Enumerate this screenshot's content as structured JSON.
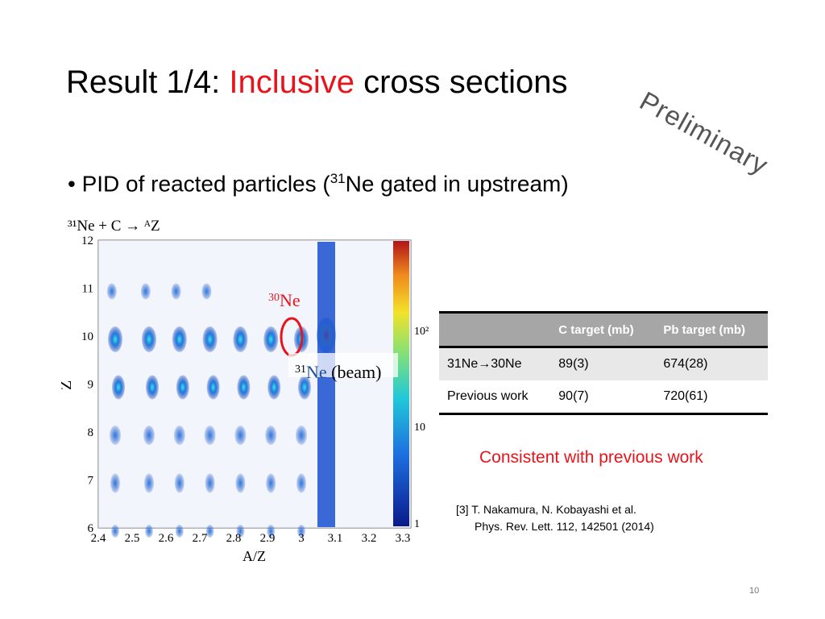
{
  "slide": {
    "title_prefix": "Result 1/4: ",
    "title_highlight": "Inclusive",
    "title_suffix": " cross sections",
    "stamp": "Preliminary",
    "bullet_symbol": "•",
    "bullet_text_a": "PID of reacted particles (",
    "bullet_sup": "31",
    "bullet_text_b": "Ne gated in upstream)",
    "page_number": "10"
  },
  "plot": {
    "reaction_title": "³¹Ne + C → ᴬZ",
    "xlabel": "A/Z",
    "ylabel": "Z",
    "x_ticks": [
      "2.4",
      "2.5",
      "2.6",
      "2.7",
      "2.8",
      "2.9",
      "3",
      "3.1",
      "3.2",
      "3.3"
    ],
    "y_ticks": [
      "6",
      "7",
      "8",
      "9",
      "10",
      "11",
      "12"
    ],
    "colorbar_ticks": [
      "1",
      "10",
      "10²"
    ],
    "label_30ne_mass": "30",
    "label_30ne_el": "Ne",
    "label_31ne_mass": "31",
    "label_31ne_el": "Ne",
    "label_31ne_suffix": " (beam)",
    "highlight_color": "#e8141c"
  },
  "table": {
    "headers": [
      "",
      "C target (mb)",
      "Pb target (mb)"
    ],
    "rows": [
      [
        "31Ne→30Ne",
        "89(3)",
        "674(28)"
      ],
      [
        "Previous work",
        "90(7)",
        "720(61)"
      ]
    ]
  },
  "note": "Consistent with previous work",
  "reference": {
    "line1": "[3] T. Nakamura, N. Kobayashi et al.",
    "line2": "Phys. Rev. Lett. 112, 142501 (2014)"
  }
}
